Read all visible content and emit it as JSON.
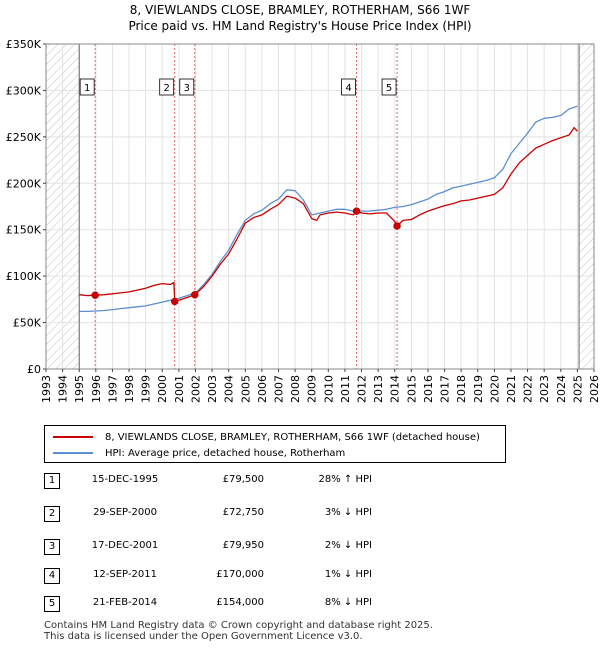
{
  "title": {
    "line1": "8, VIEWLANDS CLOSE, BRAMLEY, ROTHERHAM, S66 1WF",
    "line2": "Price paid vs. HM Land Registry's House Price Index (HPI)"
  },
  "colors": {
    "price_line": "#cc0000",
    "hpi_line": "#5b8fd0",
    "marker": "#cc0000",
    "vline": "#e06666",
    "hatch": "#999999"
  },
  "legend": {
    "price_label": "8, VIEWLANDS CLOSE, BRAMLEY, ROTHERHAM, S66 1WF (detached house)",
    "hpi_label": "HPI: Average price, detached house, Rotherham"
  },
  "transactions": [
    {
      "num": "1",
      "date": "15-DEC-1995",
      "price": "£79,500",
      "hpi": "28% ↑ HPI"
    },
    {
      "num": "2",
      "date": "29-SEP-2000",
      "price": "£72,750",
      "hpi": "3% ↓ HPI"
    },
    {
      "num": "3",
      "date": "17-DEC-2001",
      "price": "£79,950",
      "hpi": "2% ↓ HPI"
    },
    {
      "num": "4",
      "date": "12-SEP-2011",
      "price": "£170,000",
      "hpi": "1% ↓ HPI"
    },
    {
      "num": "5",
      "date": "21-FEB-2014",
      "price": "£154,000",
      "hpi": "8% ↓ HPI"
    }
  ],
  "footer": {
    "line1": "Contains HM Land Registry data © Crown copyright and database right 2025.",
    "line2": "This data is licensed under the Open Government Licence v3.0."
  },
  "chart_data": {
    "type": "line",
    "xlim": [
      1993,
      2026
    ],
    "ylim": [
      0,
      350000
    ],
    "x_ticks": [
      1993,
      1994,
      1995,
      1996,
      1997,
      1998,
      1999,
      2000,
      2001,
      2002,
      2003,
      2004,
      2005,
      2006,
      2007,
      2008,
      2009,
      2010,
      2011,
      2012,
      2013,
      2014,
      2015,
      2016,
      2017,
      2018,
      2019,
      2020,
      2021,
      2022,
      2023,
      2024,
      2025,
      2026
    ],
    "y_ticks": [
      {
        "value": 0,
        "label": "£0"
      },
      {
        "value": 50000,
        "label": "£50K"
      },
      {
        "value": 100000,
        "label": "£100K"
      },
      {
        "value": 150000,
        "label": "£150K"
      },
      {
        "value": 200000,
        "label": "£200K"
      },
      {
        "value": 250000,
        "label": "£250K"
      },
      {
        "value": 300000,
        "label": "£300K"
      },
      {
        "value": 350000,
        "label": "£350K"
      }
    ],
    "grid": true,
    "hatched_ranges": [
      [
        1993,
        1995.0
      ],
      [
        2025.1,
        2026
      ]
    ],
    "sales": [
      {
        "label": "1",
        "x": 1995.96,
        "y": 79500
      },
      {
        "label": "2",
        "x": 2000.75,
        "y": 72750
      },
      {
        "label": "3",
        "x": 2001.96,
        "y": 79950
      },
      {
        "label": "4",
        "x": 2011.7,
        "y": 170000
      },
      {
        "label": "5",
        "x": 2014.14,
        "y": 154000
      }
    ],
    "series": [
      {
        "name": "8, VIEWLANDS CLOSE, BRAMLEY, ROTHERHAM, S66 1WF (detached house)",
        "x": [
          1995.0,
          1995.5,
          1995.96,
          1996.5,
          1997.0,
          1997.5,
          1998.0,
          1998.5,
          1999.0,
          1999.5,
          2000.0,
          2000.5,
          2000.7,
          2000.75,
          2001.0,
          2001.5,
          2001.96,
          2002.5,
          2003.0,
          2003.5,
          2004.0,
          2004.5,
          2005.0,
          2005.5,
          2006.0,
          2006.5,
          2007.0,
          2007.5,
          2008.0,
          2008.5,
          2009.0,
          2009.3,
          2009.5,
          2010.0,
          2010.5,
          2011.0,
          2011.5,
          2011.7,
          2012.0,
          2012.5,
          2013.0,
          2013.5,
          2014.0,
          2014.14,
          2014.5,
          2015.0,
          2015.5,
          2016.0,
          2016.5,
          2017.0,
          2017.5,
          2018.0,
          2018.5,
          2019.0,
          2019.5,
          2020.0,
          2020.5,
          2021.0,
          2021.5,
          2022.0,
          2022.5,
          2023.0,
          2023.5,
          2024.0,
          2024.5,
          2024.8,
          2025.0
        ],
        "values": [
          80000,
          79000,
          79500,
          80000,
          81000,
          82000,
          83000,
          85000,
          87000,
          90000,
          92000,
          91000,
          93000,
          72750,
          74000,
          77000,
          79950,
          89000,
          100000,
          113000,
          124000,
          140000,
          157000,
          163000,
          166000,
          172000,
          177000,
          186000,
          184000,
          178000,
          162000,
          160000,
          166000,
          168000,
          169000,
          168000,
          166000,
          170000,
          168000,
          167000,
          168000,
          168000,
          159000,
          154000,
          160000,
          161000,
          166000,
          170000,
          173000,
          176000,
          178000,
          181000,
          182000,
          184000,
          186000,
          188000,
          195000,
          210000,
          222000,
          230000,
          238000,
          242000,
          246000,
          249000,
          252000,
          260000,
          256000
        ]
      },
      {
        "name": "HPI: Average price, detached house, Rotherham",
        "x": [
          1995.0,
          1995.5,
          1996.0,
          1996.5,
          1997.0,
          1997.5,
          1998.0,
          1998.5,
          1999.0,
          1999.5,
          2000.0,
          2000.5,
          2001.0,
          2001.5,
          2002.0,
          2002.5,
          2003.0,
          2003.5,
          2004.0,
          2004.5,
          2005.0,
          2005.5,
          2006.0,
          2006.5,
          2007.0,
          2007.5,
          2008.0,
          2008.5,
          2009.0,
          2009.5,
          2010.0,
          2010.5,
          2011.0,
          2011.5,
          2012.0,
          2012.5,
          2013.0,
          2013.5,
          2014.0,
          2014.5,
          2015.0,
          2015.5,
          2016.0,
          2016.5,
          2017.0,
          2017.5,
          2018.0,
          2018.5,
          2019.0,
          2019.5,
          2020.0,
          2020.5,
          2021.0,
          2021.5,
          2022.0,
          2022.5,
          2023.0,
          2023.5,
          2024.0,
          2024.5,
          2025.0
        ],
        "values": [
          62000,
          62000,
          62500,
          63000,
          64000,
          65000,
          66000,
          67000,
          68000,
          70000,
          72000,
          74000,
          76000,
          79000,
          82000,
          91000,
          102000,
          116000,
          128000,
          145000,
          160000,
          167000,
          171000,
          178000,
          183000,
          193000,
          192000,
          182000,
          166000,
          168000,
          170000,
          172000,
          172000,
          170000,
          170000,
          170000,
          171000,
          172000,
          174000,
          175000,
          177000,
          180000,
          183000,
          188000,
          191000,
          195000,
          197000,
          199000,
          201000,
          203000,
          206000,
          215000,
          232000,
          243000,
          254000,
          266000,
          270000,
          271000,
          273000,
          280000,
          283000
        ]
      }
    ]
  }
}
